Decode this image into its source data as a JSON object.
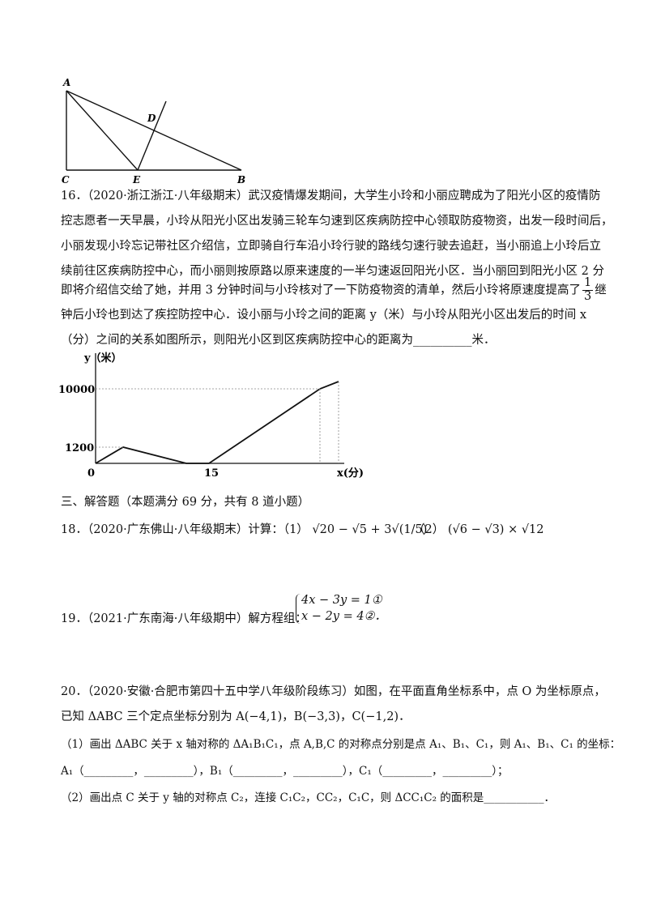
{
  "figure1": {
    "labels": [
      "A",
      "D",
      "C",
      "E",
      "B"
    ]
  },
  "q16": {
    "number": "16．",
    "lines": [
      "（2020·浙江浙江·八年级期末）武汉疫情爆发期间，大学生小玲和小丽应聘成为了阳光小区的疫情防",
      "控志愿者一天早晨，小玲从阳光小区出发骑三轮车匀速到区疾病防控中心领取防疫物资，出发一段时间后，",
      "小丽发现小玲忘记带社区介绍信，立即骑自行车沿小玲行驶的路线匀速行驶去追赶，当小丽追上小玲后立",
      "续前往区疾病防控中心，而小丽则按原路以原来速度的一半匀速返回阳光小区．当小丽回到阳光小区 2 分",
      "钟后小玲也到达了疾控防控中心．设小丽与小玲之间的距离 y（米）与小玲从阳光小区出发后的时间 x",
      "（分）之间的关系如图所示，则阳光小区到区疾病防控中心的距离为__________米．"
    ],
    "line4": {
      "before": "即将介绍信交给了她，并用 3 分钟时间与小玲核对了一下防疫物资的清单，然后小玲将原速度提高了",
      "frac_num": "1",
      "frac_den": "3",
      "after": "继"
    }
  },
  "graph": {
    "y_label": "y（米）",
    "x_label": "x(分)",
    "labels": [
      "10000",
      "1200",
      "0",
      "15"
    ]
  },
  "section": "三、解答题（本题满分 69 分，共有 8 道小题）",
  "q18": {
    "number": "18．",
    "source": "（2020·广东佛山·八年级期末）计算：",
    "part1_label": "（1）",
    "part1_expr": "√20 − √5 + 3√(1/5)",
    "part2_label": "（2）",
    "part2_expr": "(√6 − √3) × √12"
  },
  "q19": {
    "number": "19．",
    "text": "（2021·广东南海·八年级期中）解方程组：",
    "equations": [
      "4x − 3y = 1①",
      "x − 2y = 4②．"
    ]
  },
  "q20": {
    "number": "20．",
    "lines": [
      "（2020·安徽·合肥市第四十五中学八年级阶段练习）如图，在平面直角坐标系中，点 O 为坐标原点，",
      "已知 ΔABC 三个定点坐标分别为 A(−4,1)，B(−3,3)，C(−1,2)．",
      "（1）画出 ΔABC 关于 x 轴对称的 ΔA₁B₁C₁，点 A,B,C 的对称点分别是点 A₁、B₁、C₁，则 A₁、B₁、C₁ 的坐标：",
      "A₁（_________，_________），B₁（_________，_________），C₁（_________，_________）；",
      "（2）画出点 C 关于 y 轴的对称点 C₂，连接 C₁C₂，CC₂，C₁C，则 ΔCC₁C₂ 的面积是___________．"
    ]
  }
}
